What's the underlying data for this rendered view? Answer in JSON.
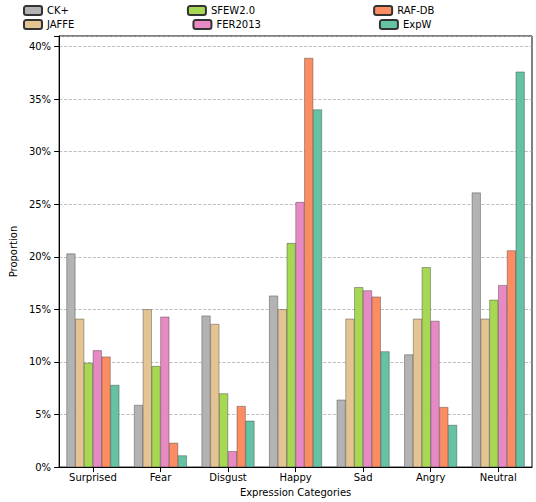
{
  "chart_data": {
    "type": "bar",
    "x_label": "Expression Categories",
    "y_label": "Proportion",
    "categories": [
      "Surprised",
      "Fear",
      "Disgust",
      "Happy",
      "Sad",
      "Angry",
      "Neutral"
    ],
    "series": [
      {
        "name": "CK+",
        "color": "#b3b3b3",
        "values": [
          20.3,
          5.9,
          14.4,
          16.3,
          6.4,
          10.7,
          26.1
        ]
      },
      {
        "name": "JAFFE",
        "color": "#e5c494",
        "values": [
          14.1,
          15.0,
          13.6,
          15.0,
          14.1,
          14.1,
          14.1
        ]
      },
      {
        "name": "SFEW2.0",
        "color": "#a6d854",
        "values": [
          9.9,
          9.6,
          7.0,
          21.3,
          17.1,
          19.0,
          15.9
        ]
      },
      {
        "name": "FER2013",
        "color": "#e78ac3",
        "values": [
          11.1,
          14.3,
          1.5,
          25.2,
          16.8,
          13.9,
          17.3
        ]
      },
      {
        "name": "RAF-DB",
        "color": "#fc8d62",
        "values": [
          10.5,
          2.3,
          5.8,
          38.9,
          16.2,
          5.7,
          20.6
        ]
      },
      {
        "name": "ExpW",
        "color": "#66c2a5",
        "values": [
          7.8,
          1.1,
          4.4,
          34.0,
          11.0,
          4.0,
          37.6
        ]
      }
    ],
    "ylim": [
      0,
      41
    ],
    "yticks": [
      {
        "value": 0,
        "label": "0%"
      },
      {
        "value": 5,
        "label": "5%"
      },
      {
        "value": 10,
        "label": "10%"
      },
      {
        "value": 15,
        "label": "15%"
      },
      {
        "value": 20,
        "label": "20%"
      },
      {
        "value": 25,
        "label": "25%"
      },
      {
        "value": 30,
        "label": "30%"
      },
      {
        "value": 35,
        "label": "35%"
      },
      {
        "value": 40,
        "label": "40%"
      }
    ],
    "grid": true,
    "legend": "top"
  }
}
